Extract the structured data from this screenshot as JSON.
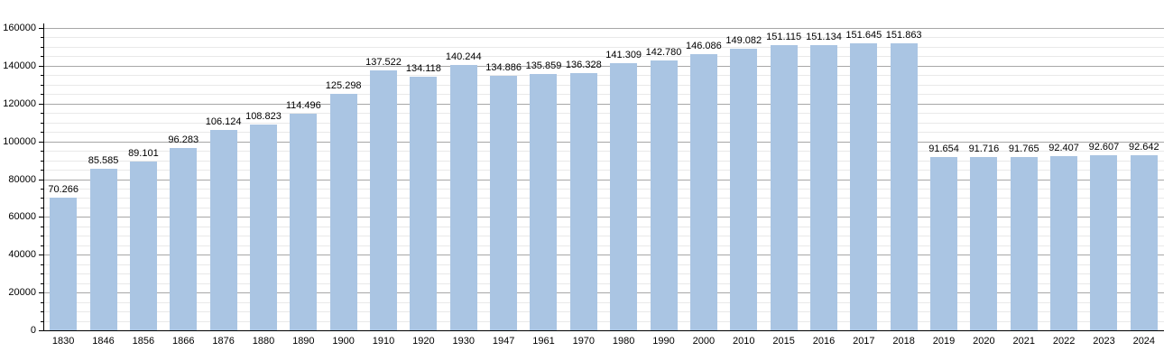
{
  "chart_data": {
    "type": "bar",
    "title": "",
    "xlabel": "",
    "ylabel": "",
    "categories": [
      "1830",
      "1846",
      "1856",
      "1866",
      "1876",
      "1880",
      "1890",
      "1900",
      "1910",
      "1920",
      "1930",
      "1947",
      "1961",
      "1970",
      "1980",
      "1990",
      "2000",
      "2010",
      "2015",
      "2016",
      "2017",
      "2018",
      "2019",
      "2020",
      "2021",
      "2022",
      "2023",
      "2024"
    ],
    "values": [
      70266,
      85585,
      89101,
      96283,
      106124,
      108823,
      114496,
      125298,
      137522,
      134118,
      140244,
      134886,
      135859,
      136328,
      141309,
      142780,
      146086,
      149082,
      151115,
      151134,
      151645,
      151863,
      91654,
      91716,
      91765,
      92407,
      92607,
      92642
    ],
    "bar_labels": [
      "70.266",
      "85.585",
      "89.101",
      "96.283",
      "106.124",
      "108.823",
      "114.496",
      "125.298",
      "137.522",
      "134.118",
      "140.244",
      "134.886",
      "135.859",
      "136.328",
      "141.309",
      "142.780",
      "146.086",
      "149.082",
      "151.115",
      "151.134",
      "151.645",
      "151.863",
      "91.654",
      "91.716",
      "91.765",
      "92.407",
      "92.607",
      "92.642"
    ],
    "ylim": [
      0,
      160000
    ],
    "y_major_step": 20000,
    "y_minor_step": 5000,
    "y_tick_labels": [
      "0",
      "20000",
      "40000",
      "60000",
      "80000",
      "100000",
      "120000",
      "140000",
      "160000"
    ],
    "grid": true,
    "legend": "none",
    "colors": {
      "bar": "#aac5e3",
      "grid_major": "#a7a7a7",
      "grid_minor": "#e9e9e9",
      "axis": "#000000",
      "text": "#000000"
    }
  }
}
